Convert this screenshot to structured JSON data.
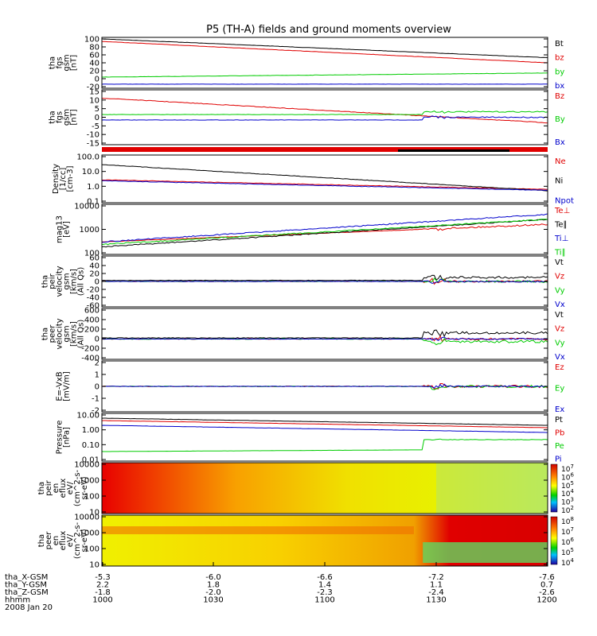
{
  "title": "P5 (TH-A) fields and ground moments overview",
  "colors": {
    "black": "#000000",
    "red": "#e00000",
    "green": "#00cc00",
    "blue": "#0000cc"
  },
  "chart_data": [
    {
      "type": "line",
      "ylabel": [
        "tha",
        "fgs",
        "gsm",
        "[nT]"
      ],
      "yticks": [
        "100",
        "80",
        "60",
        "40",
        "20",
        "0",
        "-20"
      ],
      "ylim": [
        -25,
        100
      ],
      "series": [
        {
          "name": "Bt",
          "color": "black"
        },
        {
          "name": "bz",
          "color": "red"
        },
        {
          "name": "by",
          "color": "green"
        },
        {
          "name": "bx",
          "color": "blue"
        }
      ]
    },
    {
      "type": "line",
      "ylabel": [
        "tha",
        "fgs",
        "gsm",
        "[nT]"
      ],
      "yticks": [
        "15",
        "10",
        "5",
        "0",
        "-5",
        "-10",
        "-15"
      ],
      "ylim": [
        -17,
        17
      ],
      "series": [
        {
          "name": "Bz",
          "color": "red"
        },
        {
          "name": "By",
          "color": "green"
        },
        {
          "name": "Bx",
          "color": "blue"
        }
      ]
    },
    {
      "type": "line",
      "ylabel": [
        "Density",
        "[1/cc]",
        "[cm-3]"
      ],
      "yticks": [
        "100.0",
        "10.0",
        "1.0",
        "0.1"
      ],
      "scale": "log",
      "series": [
        {
          "name": "Ne",
          "color": "red"
        },
        {
          "name": "Ni",
          "color": "black"
        },
        {
          "name": "Npot",
          "color": "blue"
        }
      ]
    },
    {
      "type": "line",
      "ylabel": [
        "mag13",
        "[eV]"
      ],
      "yticks": [
        "10000",
        "1000",
        "100"
      ],
      "scale": "log",
      "series": [
        {
          "name": "Te⊥",
          "color": "red"
        },
        {
          "name": "Te∥",
          "color": "black"
        },
        {
          "name": "Ti⊥",
          "color": "blue"
        },
        {
          "name": "Ti∥",
          "color": "green"
        }
      ]
    },
    {
      "type": "line",
      "ylabel": [
        "tha",
        "peir",
        "velocity",
        "gsm",
        "[km/s]",
        "(All Qs)"
      ],
      "yticks": [
        "60",
        "40",
        "20",
        "0",
        "-20",
        "-40",
        "-60"
      ],
      "ylim": [
        -60,
        60
      ],
      "series": [
        {
          "name": "Vt",
          "color": "black"
        },
        {
          "name": "Vz",
          "color": "red"
        },
        {
          "name": "Vy",
          "color": "green"
        },
        {
          "name": "Vx",
          "color": "blue"
        }
      ]
    },
    {
      "type": "line",
      "ylabel": [
        "tha",
        "peer",
        "velocity",
        "gsm",
        "[km/s]",
        "(All Qs)"
      ],
      "yticks": [
        "600",
        "400",
        "200",
        "0",
        "-200",
        "-400"
      ],
      "ylim": [
        -400,
        600
      ],
      "series": [
        {
          "name": "Vt",
          "color": "black"
        },
        {
          "name": "Vz",
          "color": "red"
        },
        {
          "name": "Vy",
          "color": "green"
        },
        {
          "name": "Vx",
          "color": "blue"
        }
      ]
    },
    {
      "type": "line",
      "ylabel": [
        "E=-VxB",
        "[mV/m]"
      ],
      "yticks": [
        "2",
        "1",
        "0",
        "-1",
        "-2"
      ],
      "ylim": [
        -2,
        2
      ],
      "series": [
        {
          "name": "Ez",
          "color": "red"
        },
        {
          "name": "Ey",
          "color": "green"
        },
        {
          "name": "Ex",
          "color": "blue"
        }
      ]
    },
    {
      "type": "line",
      "ylabel": [
        "Pressure",
        "[nPa]"
      ],
      "yticks": [
        "10.00",
        "1.00",
        "0.10",
        "0.01"
      ],
      "scale": "log",
      "series": [
        {
          "name": "Pt",
          "color": "black"
        },
        {
          "name": "Pb",
          "color": "red"
        },
        {
          "name": "Pe",
          "color": "green"
        },
        {
          "name": "Pi",
          "color": "blue"
        }
      ]
    },
    {
      "type": "heatmap",
      "ylabel": [
        "tha",
        "peir",
        "en",
        "eflux",
        "eV/",
        "(cm^2-s-",
        "sr-eV)"
      ],
      "yticks": [
        "10000",
        "1000",
        "100",
        "10"
      ],
      "colorbar": [
        "10^7",
        "10^6",
        "10^5",
        "10^4",
        "10^3",
        "10^2"
      ]
    },
    {
      "type": "heatmap",
      "ylabel": [
        "tha",
        "peer",
        "en",
        "eflux",
        "eV/",
        "(cm^2-s-",
        "sr-eV)"
      ],
      "yticks": [
        "10000",
        "1000",
        "100",
        "10"
      ],
      "colorbar": [
        "10^8",
        "10^7",
        "10^6",
        "10^5",
        "10^4"
      ]
    }
  ],
  "xaxis": {
    "ticks_hhmm": [
      "1000",
      "1030",
      "1100",
      "1130",
      "1200"
    ],
    "rows": [
      {
        "label": "tha_X-GSM",
        "values": [
          "-5.3",
          "-6.0",
          "-6.6",
          "-7.2",
          "-7.6"
        ]
      },
      {
        "label": "tha_Y-GSM",
        "values": [
          "2.2",
          "1.8",
          "1.4",
          "1.1",
          "0.7"
        ]
      },
      {
        "label": "tha_Z-GSM",
        "values": [
          "-1.8",
          "-2.0",
          "-2.3",
          "-2.4",
          "-2.6"
        ]
      },
      {
        "label": "hhmm",
        "values": [
          "1000",
          "1030",
          "1100",
          "1130",
          "1200"
        ]
      }
    ],
    "date": "2008 Jan 20"
  }
}
